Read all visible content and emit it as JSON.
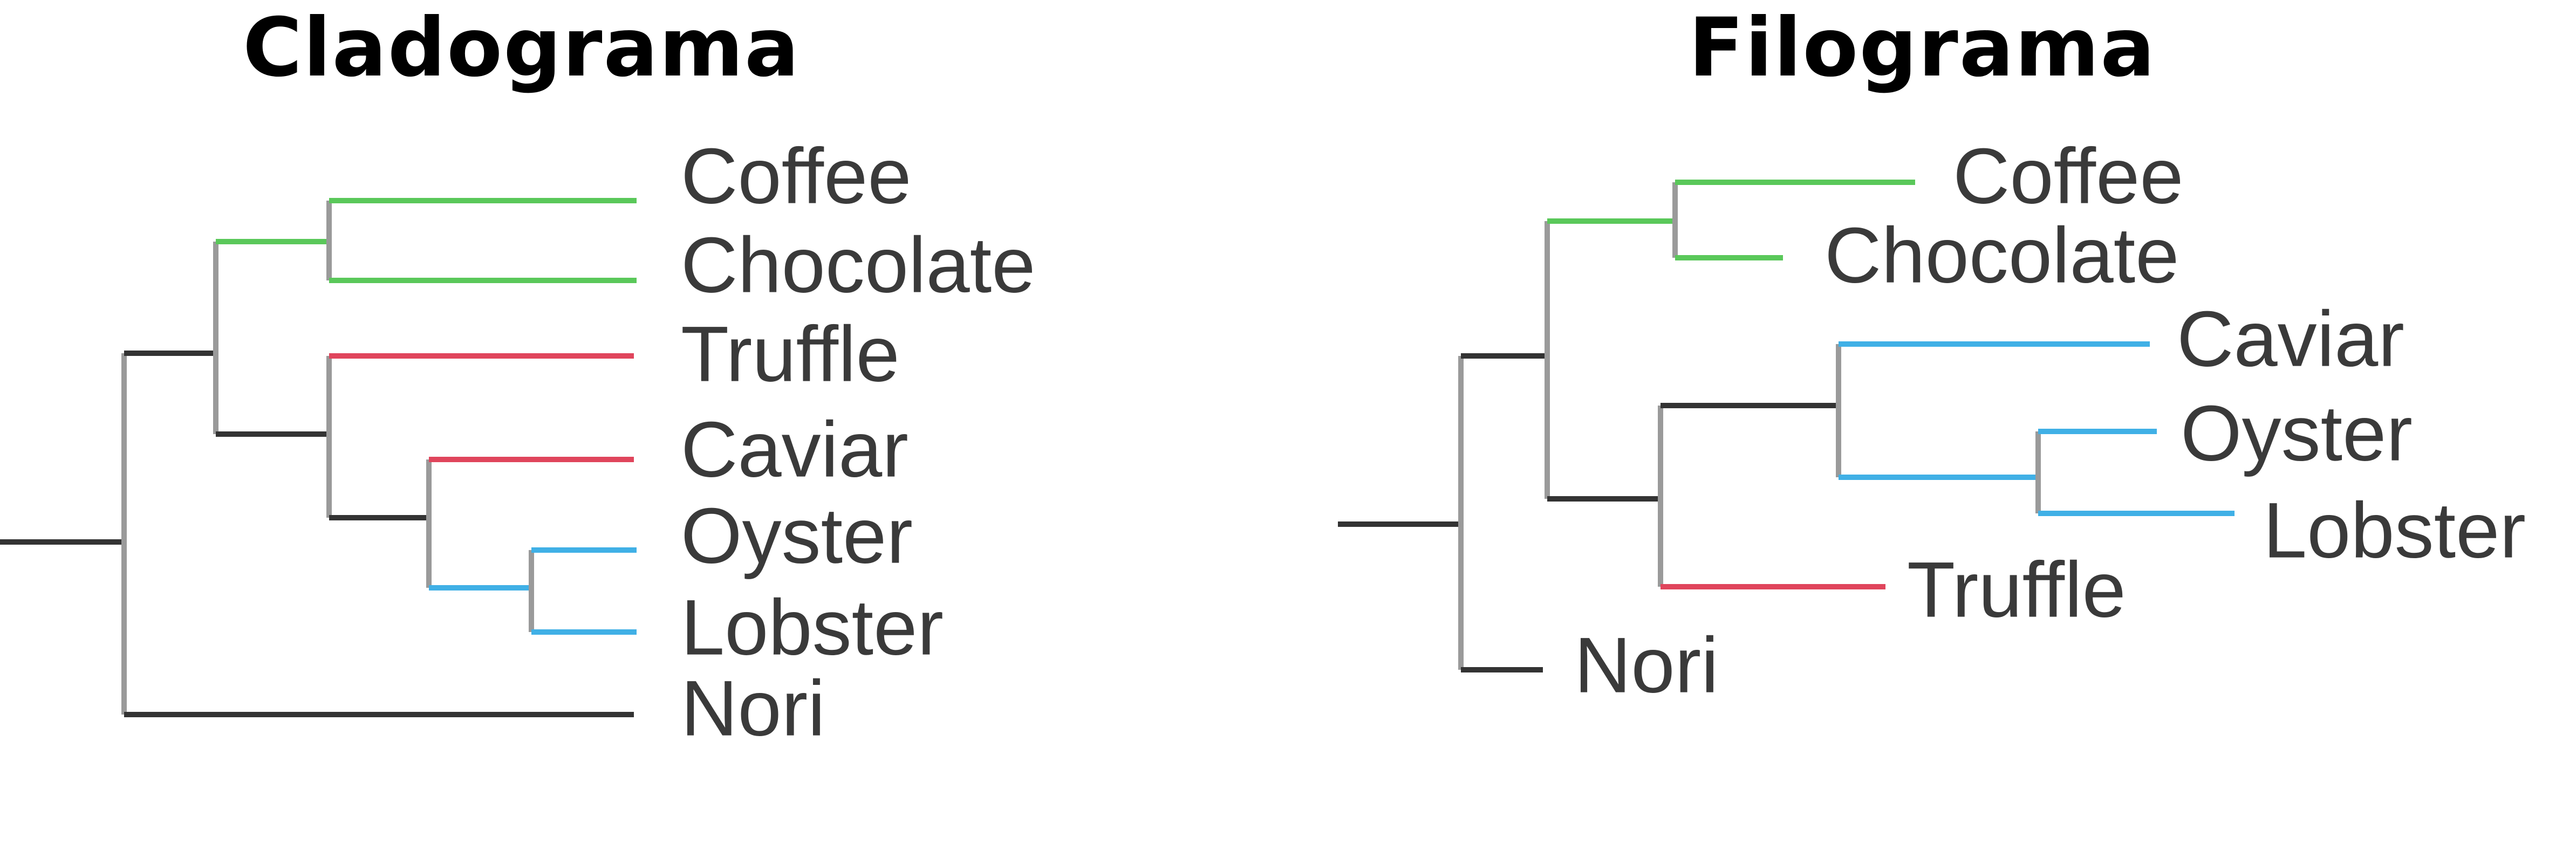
{
  "panels": {
    "cladogram": {
      "title": "Cladograma",
      "leaves": [
        {
          "id": "coffee",
          "label": "Coffee"
        },
        {
          "id": "chocolate",
          "label": "Chocolate"
        },
        {
          "id": "truffle",
          "label": "Truffle"
        },
        {
          "id": "caviar",
          "label": "Caviar"
        },
        {
          "id": "oyster",
          "label": "Oyster"
        },
        {
          "id": "lobster",
          "label": "Lobster"
        },
        {
          "id": "nori",
          "label": "Nori"
        }
      ]
    },
    "phylogram": {
      "title": "Filograma",
      "leaves": [
        {
          "id": "coffee",
          "label": "Coffee"
        },
        {
          "id": "chocolate",
          "label": "Chocolate"
        },
        {
          "id": "caviar",
          "label": "Caviar"
        },
        {
          "id": "oyster",
          "label": "Oyster"
        },
        {
          "id": "lobster",
          "label": "Lobster"
        },
        {
          "id": "truffle",
          "label": "Truffle"
        },
        {
          "id": "nori",
          "label": "Nori"
        }
      ]
    }
  },
  "colors": {
    "green": "#5ac85a",
    "red": "#e0455c",
    "blue": "#40b0e6",
    "dark": "#333333",
    "gray": "#9a9a9a"
  }
}
